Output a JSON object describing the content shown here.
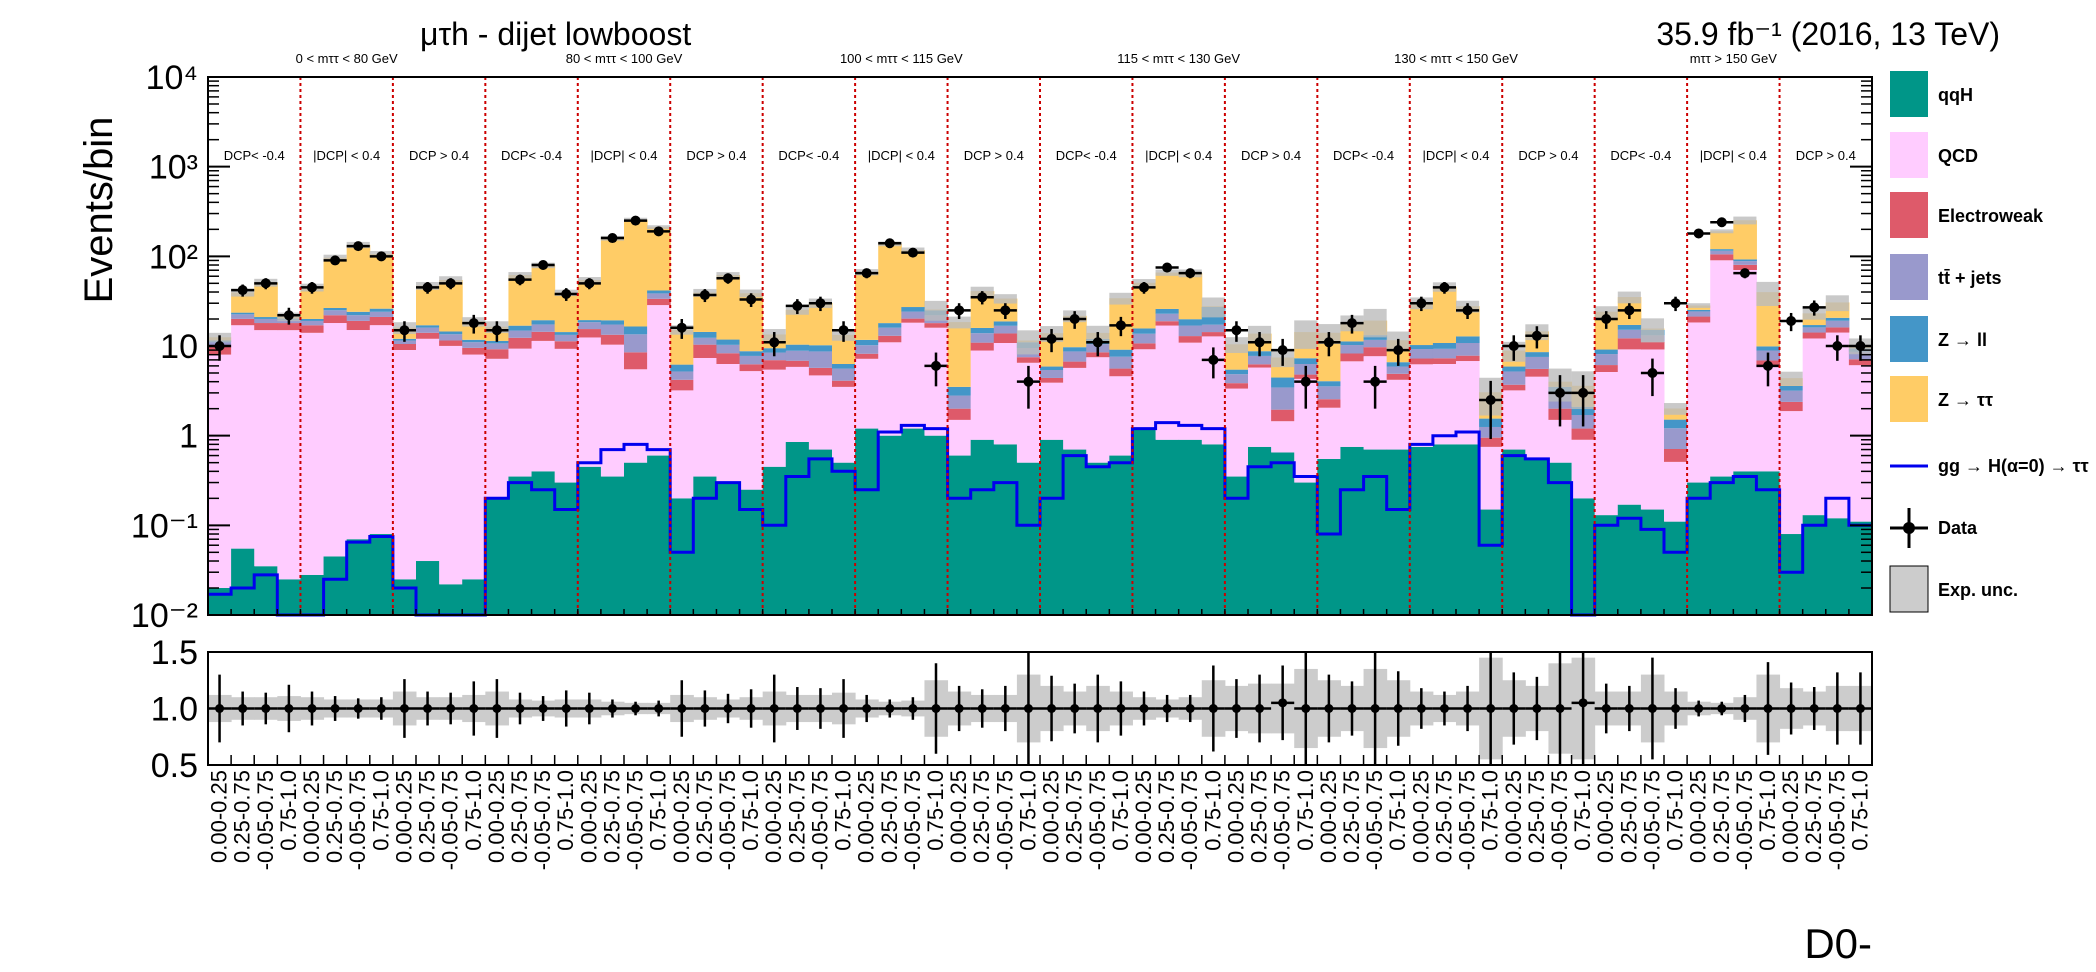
{
  "chart_data": {
    "type": "bar",
    "stacked": true,
    "yscale": "log",
    "title": "μτh - dijet lowboost",
    "lumi_label": "35.9 fb⁻¹ (2016, 13 TeV)",
    "ylabel": "Events/bin",
    "xlabel": "D0-",
    "ylim": [
      0.01,
      10000
    ],
    "y_ticks": [
      "10⁻²",
      "10⁻¹",
      "1",
      "10",
      "10²",
      "10³",
      "10⁴"
    ],
    "grid": false,
    "legend_position": "right",
    "mass_regions": [
      "0 < mττ < 80 GeV",
      "80 < mττ < 100 GeV",
      "100 < mττ < 115 GeV",
      "115 < mττ < 130 GeV",
      "130 < mττ < 150 GeV",
      "mττ > 150 GeV"
    ],
    "dcp_regions": [
      "DCP< -0.4",
      "|DCP| < 0.4",
      "DCP > 0.4"
    ],
    "bin_labels": [
      "0.00-0.25",
      "0.25-0.75",
      "-0.05-0.75",
      "0.75-1.0",
      "0.00-0.25",
      "0.25-0.75",
      "-0.05-0.75",
      "0.75-1.0",
      "0.00-0.25",
      "0.25-0.75",
      "-0.05-0.75",
      "0.75-1.0",
      "0.00-0.25",
      "0.25-0.75",
      "-0.05-0.75",
      "0.75-1.0",
      "0.00-0.25",
      "0.25-0.75",
      "-0.05-0.75",
      "0.75-1.0",
      "0.00-0.25",
      "0.25-0.75",
      "-0.05-0.75",
      "0.75-1.0",
      "0.00-0.25",
      "0.25-0.75",
      "-0.05-0.75",
      "0.75-1.0",
      "0.00-0.25",
      "0.25-0.75",
      "-0.05-0.75",
      "0.75-1.0",
      "0.00-0.25",
      "0.25-0.75",
      "-0.05-0.75",
      "0.75-1.0",
      "0.00-0.25",
      "0.25-0.75",
      "-0.05-0.75",
      "0.75-1.0",
      "0.00-0.25",
      "0.25-0.75",
      "-0.05-0.75",
      "0.75-1.0",
      "0.00-0.25",
      "0.25-0.75",
      "-0.05-0.75",
      "0.75-1.0",
      "0.00-0.25",
      "0.25-0.75",
      "-0.05-0.75",
      "0.75-1.0",
      "0.00-0.25",
      "0.25-0.75",
      "-0.05-0.75",
      "0.75-1.0",
      "0.00-0.25",
      "0.25-0.75",
      "-0.05-0.75",
      "0.75-1.0",
      "0.00-0.25",
      "0.25-0.75",
      "-0.05-0.75",
      "0.75-1.0",
      "0.00-0.25",
      "0.25-0.75",
      "-0.05-0.75",
      "0.75-1.0",
      "0.00-0.25",
      "0.25-0.75",
      "-0.05-0.75",
      "0.75-1.0"
    ],
    "series": [
      {
        "name": "qqH",
        "color": "#009688",
        "values": [
          0.02,
          0.055,
          0.035,
          0.025,
          0.028,
          0.045,
          0.07,
          0.08,
          0.025,
          0.04,
          0.022,
          0.025,
          0.2,
          0.35,
          0.4,
          0.3,
          0.45,
          0.35,
          0.5,
          0.6,
          0.2,
          0.35,
          0.3,
          0.25,
          0.45,
          0.85,
          0.7,
          0.5,
          1.2,
          1.0,
          1.2,
          1.0,
          0.6,
          0.9,
          0.8,
          0.5,
          0.9,
          0.7,
          0.5,
          0.6,
          1.2,
          0.9,
          0.9,
          0.8,
          0.35,
          0.75,
          0.65,
          0.3,
          0.55,
          0.75,
          0.7,
          0.7,
          0.75,
          0.8,
          0.8,
          0.15,
          0.7,
          0.55,
          0.5,
          0.2,
          0.13,
          0.17,
          0.15,
          0.11,
          0.3,
          0.35,
          0.4,
          0.4,
          0.08,
          0.13,
          0.12,
          0.11
        ]
      },
      {
        "name": "QCD",
        "color": "#ffccff",
        "values": [
          8,
          17,
          15,
          15,
          14,
          18,
          15,
          17,
          9,
          12,
          10,
          8,
          7,
          9,
          11,
          9,
          12,
          10,
          5,
          28,
          3,
          7,
          6,
          5,
          5,
          5,
          4,
          3,
          6,
          10,
          17,
          15,
          0.9,
          8,
          10,
          6,
          3,
          5,
          7,
          4,
          8,
          16,
          10,
          12,
          3,
          5,
          0.8,
          4,
          1.5,
          6,
          7,
          3.5,
          5.5,
          5.5,
          6,
          0.6,
          2.5,
          4,
          1,
          0.7,
          5,
          9,
          9,
          0.4,
          18,
          90,
          70,
          5.5,
          1.8,
          12,
          14,
          6
        ]
      },
      {
        "name": "Electroweak",
        "color": "#de5a6a",
        "values": [
          2,
          3,
          3,
          3,
          3,
          4,
          4,
          4,
          1.5,
          2,
          1.5,
          1.5,
          2,
          3,
          3,
          2,
          3,
          3,
          3,
          5,
          1,
          3,
          2,
          1,
          1.5,
          1,
          1,
          0.6,
          1,
          2,
          2,
          2,
          0.5,
          2,
          3,
          1,
          0.5,
          1,
          1,
          1,
          1.5,
          2,
          2,
          1.5,
          0.5,
          0.5,
          0.5,
          0.5,
          0.5,
          1.5,
          2,
          0.7,
          1,
          1,
          1,
          0.2,
          0.5,
          1,
          0.5,
          0.3,
          1,
          3,
          2,
          0.2,
          3,
          15,
          10,
          1,
          0.5,
          2,
          2,
          1
        ]
      },
      {
        "name": "tt̄ + jets",
        "color": "#9999cc",
        "values": [
          1,
          2.5,
          2,
          1.5,
          2,
          3,
          3,
          3,
          1,
          2,
          2,
          1.5,
          1.5,
          2.5,
          3,
          2,
          3,
          4,
          5,
          5,
          1,
          2,
          2,
          1.5,
          1.5,
          2,
          3,
          1.5,
          2,
          3,
          4,
          4,
          0.8,
          3,
          3,
          2,
          1,
          2,
          2,
          2,
          3,
          4,
          4,
          3,
          1,
          1.5,
          1.5,
          1.5,
          1,
          2,
          2,
          1,
          2,
          2,
          3,
          0.3,
          1.5,
          2,
          1,
          0.5,
          2,
          3,
          2,
          0.5,
          3,
          10,
          8,
          2,
          0.8,
          2,
          3,
          1.5
        ]
      },
      {
        "name": "Z → ll",
        "color": "#4496c8",
        "values": [
          0.5,
          1,
          1,
          0.7,
          1,
          1.5,
          2,
          2,
          0.5,
          1,
          1,
          0.7,
          0.7,
          2,
          2,
          1,
          1,
          2,
          3,
          3,
          1,
          2,
          1.5,
          1,
          1,
          1.5,
          1.5,
          0.7,
          1.5,
          2,
          3,
          3,
          0.7,
          2,
          2,
          1.5,
          0.5,
          1,
          1.5,
          1.5,
          2,
          3,
          3,
          10,
          0.6,
          1,
          1,
          1,
          0.5,
          1,
          1.5,
          0.7,
          1,
          1.5,
          2,
          0.3,
          0.7,
          1,
          0.5,
          0.4,
          1,
          2,
          2,
          0.3,
          1,
          5,
          4,
          1,
          0.4,
          1,
          1.5,
          0.8
        ]
      },
      {
        "name": "Z → ττ",
        "color": "#ffcc66",
        "values": [
          1,
          16,
          30,
          1,
          25,
          70,
          110,
          80,
          4,
          30,
          40,
          7,
          5,
          45,
          60,
          25,
          35,
          140,
          240,
          170,
          9,
          25,
          50,
          30,
          4,
          15,
          20,
          7,
          55,
          120,
          90,
          0.5,
          15,
          25,
          15,
          0.5,
          8,
          12,
          2,
          25,
          35,
          40,
          45,
          0.5,
          5,
          5,
          3,
          7,
          10,
          7,
          6,
          5,
          20,
          35,
          15,
          1.5,
          3,
          6,
          0.5,
          1.5,
          15,
          18,
          0.5,
          0.5,
          3,
          70,
          160,
          30,
          0.8,
          6,
          10,
          0.7
        ]
      },
      {
        "name": "Exp. unc.",
        "color": "#cccccc",
        "values": []
      }
    ],
    "signal": {
      "name": "gg → H(α=0) → ττ",
      "color": "#0000ee",
      "values": [
        0.017,
        0.02,
        0.028,
        0.01,
        0.01,
        0.025,
        0.065,
        0.075,
        0.02,
        0.01,
        0.01,
        0.01,
        0.2,
        0.3,
        0.25,
        0.15,
        0.5,
        0.7,
        0.8,
        0.7,
        0.05,
        0.2,
        0.3,
        0.15,
        0.1,
        0.35,
        0.55,
        0.4,
        0.25,
        1.1,
        1.3,
        1.2,
        0.2,
        0.25,
        0.3,
        0.1,
        0.2,
        0.6,
        0.45,
        0.5,
        1.2,
        1.4,
        1.3,
        1.2,
        0.2,
        0.45,
        0.5,
        0.35,
        0.08,
        0.25,
        0.35,
        0.15,
        0.8,
        1.0,
        1.1,
        0.06,
        0.6,
        0.55,
        0.3,
        0.01,
        0.1,
        0.12,
        0.09,
        0.05,
        0.2,
        0.3,
        0.35,
        0.25,
        0.03,
        0.1,
        0.2,
        0.1
      ]
    },
    "data_points": {
      "name": "Data",
      "values": [
        10,
        42,
        50,
        22,
        45,
        90,
        130,
        100,
        15,
        45,
        50,
        18,
        15,
        55,
        80,
        38,
        50,
        160,
        250,
        190,
        16,
        37,
        57,
        33,
        11,
        28,
        30,
        15,
        65,
        140,
        110,
        6,
        25,
        35,
        25,
        4,
        12,
        20,
        11,
        17,
        45,
        75,
        65,
        7,
        15,
        11,
        9,
        4,
        11,
        18,
        4,
        9,
        30,
        45,
        25,
        2.5,
        10,
        13,
        3,
        3,
        20,
        25,
        5,
        30,
        180,
        240,
        65,
        6,
        19,
        27,
        10,
        10
      ]
    },
    "ratio": {
      "ylim": [
        0.5,
        1.5
      ],
      "y_ticks": [
        "0.5",
        "1.0",
        "1.5"
      ],
      "values": [
        1.0,
        1.0,
        1.0,
        1.0,
        1.0,
        1.0,
        1.0,
        1.0,
        1.0,
        1.0,
        1.0,
        1.0,
        1.0,
        1.0,
        1.0,
        1.0,
        1.0,
        1.0,
        1.0,
        1.0,
        1.0,
        1.0,
        1.0,
        1.0,
        1.0,
        1.0,
        1.0,
        1.0,
        1.0,
        1.0,
        1.0,
        1.0,
        1.0,
        1.0,
        1.0,
        1.0,
        1.0,
        1.0,
        1.0,
        1.0,
        1.0,
        1.0,
        1.0,
        1.0,
        1.0,
        1.0,
        1.05,
        1.0,
        1.0,
        1.0,
        1.0,
        1.0,
        1.0,
        1.0,
        1.0,
        1.0,
        1.0,
        1.0,
        1.0,
        1.05,
        1.0,
        1.0,
        1.0,
        1.0,
        1.0,
        1.0,
        1.0,
        1.0,
        1.0,
        1.0,
        1.0,
        1.0
      ],
      "errors": [
        0.3,
        0.15,
        0.14,
        0.21,
        0.15,
        0.11,
        0.09,
        0.1,
        0.26,
        0.15,
        0.14,
        0.24,
        0.26,
        0.14,
        0.11,
        0.16,
        0.14,
        0.08,
        0.06,
        0.07,
        0.25,
        0.16,
        0.13,
        0.17,
        0.3,
        0.19,
        0.18,
        0.26,
        0.12,
        0.08,
        0.1,
        0.4,
        0.2,
        0.17,
        0.2,
        0.5,
        0.29,
        0.22,
        0.3,
        0.24,
        0.15,
        0.12,
        0.12,
        0.38,
        0.26,
        0.3,
        0.33,
        0.5,
        0.3,
        0.24,
        0.5,
        0.33,
        0.18,
        0.15,
        0.2,
        0.6,
        0.32,
        0.28,
        0.55,
        0.58,
        0.22,
        0.2,
        0.45,
        0.18,
        0.07,
        0.06,
        0.12,
        0.41,
        0.23,
        0.19,
        0.32,
        0.32
      ],
      "band": [
        0.12,
        0.1,
        0.1,
        0.11,
        0.1,
        0.08,
        0.08,
        0.08,
        0.15,
        0.1,
        0.1,
        0.12,
        0.15,
        0.08,
        0.07,
        0.08,
        0.08,
        0.06,
        0.05,
        0.05,
        0.12,
        0.1,
        0.08,
        0.1,
        0.15,
        0.12,
        0.12,
        0.14,
        0.08,
        0.06,
        0.07,
        0.25,
        0.15,
        0.12,
        0.12,
        0.3,
        0.2,
        0.15,
        0.2,
        0.15,
        0.1,
        0.08,
        0.1,
        0.25,
        0.2,
        0.22,
        0.22,
        0.35,
        0.25,
        0.2,
        0.35,
        0.25,
        0.15,
        0.12,
        0.15,
        0.45,
        0.25,
        0.2,
        0.4,
        0.45,
        0.15,
        0.15,
        0.3,
        0.15,
        0.06,
        0.05,
        0.1,
        0.3,
        0.18,
        0.15,
        0.2,
        0.2
      ]
    }
  }
}
